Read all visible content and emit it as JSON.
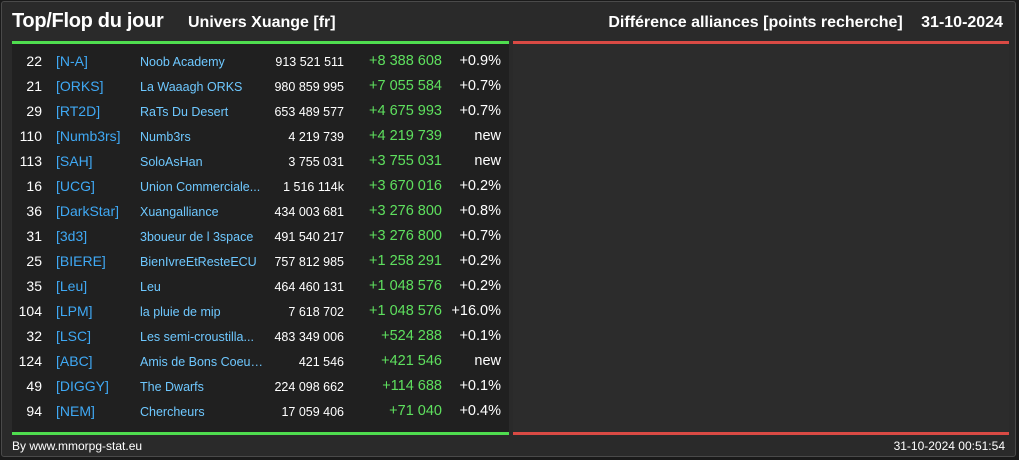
{
  "header": {
    "title": "Top/Flop du jour",
    "universe": "Univers Xuange [fr]",
    "category": "Différence alliances [points recherche]",
    "date": "31-10-2024"
  },
  "colors": {
    "gain": "#5ee05e",
    "loss": "#d94a44",
    "tag": "#3fa9f5",
    "name": "#6ec8ff"
  },
  "rows": [
    {
      "rank": "22",
      "tag": "[N-A]",
      "name": "Noob Academy",
      "points": "913 521 511",
      "diff": "+8 388 608",
      "pct": "+0.9%"
    },
    {
      "rank": "21",
      "tag": "[ORKS]",
      "name": "La Waaagh ORKS",
      "points": "980 859 995",
      "diff": "+7 055 584",
      "pct": "+0.7%"
    },
    {
      "rank": "29",
      "tag": "[RT2D]",
      "name": "RaTs Du Desert",
      "points": "653 489 577",
      "diff": "+4 675 993",
      "pct": "+0.7%"
    },
    {
      "rank": "110",
      "tag": "[Numb3rs]",
      "name": "Numb3rs",
      "points": "4 219 739",
      "diff": "+4 219 739",
      "pct": "new"
    },
    {
      "rank": "113",
      "tag": "[SAH]",
      "name": "SoloAsHan",
      "points": "3 755 031",
      "diff": "+3 755 031",
      "pct": "new"
    },
    {
      "rank": "16",
      "tag": "[UCG]",
      "name": "Union Commerciale...",
      "points": "1 516 114k",
      "diff": "+3 670 016",
      "pct": "+0.2%"
    },
    {
      "rank": "36",
      "tag": "[DarkStar]",
      "name": "Xuangalliance",
      "points": "434 003 681",
      "diff": "+3 276 800",
      "pct": "+0.8%"
    },
    {
      "rank": "31",
      "tag": "[3d3]",
      "name": "3boueur de l 3space",
      "points": "491 540 217",
      "diff": "+3 276 800",
      "pct": "+0.7%"
    },
    {
      "rank": "25",
      "tag": "[BIERE]",
      "name": "BienIvreEtResteECU",
      "points": "757 812 985",
      "diff": "+1 258 291",
      "pct": "+0.2%"
    },
    {
      "rank": "35",
      "tag": "[Leu]",
      "name": "Leu",
      "points": "464 460 131",
      "diff": "+1 048 576",
      "pct": "+0.2%"
    },
    {
      "rank": "104",
      "tag": "[LPM]",
      "name": "la pluie de mip",
      "points": "7 618 702",
      "diff": "+1 048 576",
      "pct": "+16.0%"
    },
    {
      "rank": "32",
      "tag": "[LSC]",
      "name": "Les semi-croustilla...",
      "points": "483 349 006",
      "diff": "+524 288",
      "pct": "+0.1%"
    },
    {
      "rank": "124",
      "tag": "[ABC]",
      "name": "Amis de Bons Coeur...",
      "points": "421 546",
      "diff": "+421 546",
      "pct": "new"
    },
    {
      "rank": "49",
      "tag": "[DIGGY]",
      "name": "The Dwarfs",
      "points": "224 098 662",
      "diff": "+114 688",
      "pct": "+0.1%"
    },
    {
      "rank": "94",
      "tag": "[NEM]",
      "name": "Chercheurs",
      "points": "17 059 406",
      "diff": "+71 040",
      "pct": "+0.4%"
    }
  ],
  "footer": {
    "credit": "By www.mmorpg-stat.eu",
    "timestamp": "31-10-2024 00:51:54"
  }
}
